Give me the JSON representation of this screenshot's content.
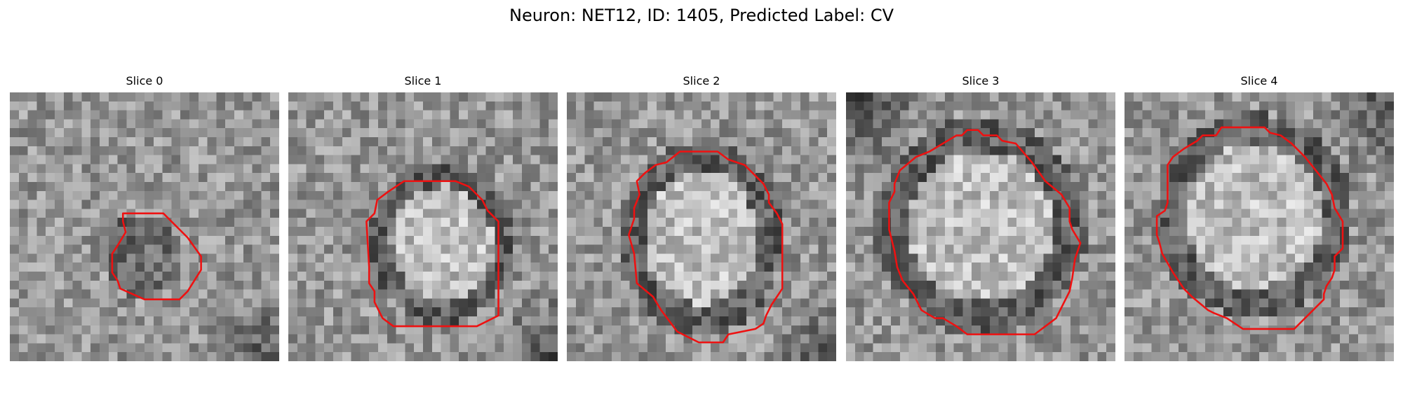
{
  "figure": {
    "title": "Neuron: NET12, ID: 1405, Predicted Label: CV"
  },
  "panels": [
    {
      "title": "Slice 0",
      "seed": 11,
      "cell_center": [
        0.49,
        0.61
      ],
      "cell_radius": [
        0.15,
        0.16
      ],
      "cell_tone": "dark",
      "dark_corner": "bottom-right",
      "contour": [
        [
          0.42,
          0.45
        ],
        [
          0.57,
          0.45
        ],
        [
          0.66,
          0.54
        ],
        [
          0.71,
          0.61
        ],
        [
          0.71,
          0.66
        ],
        [
          0.66,
          0.74
        ],
        [
          0.63,
          0.77
        ],
        [
          0.5,
          0.77
        ],
        [
          0.41,
          0.73
        ],
        [
          0.4,
          0.7
        ],
        [
          0.38,
          0.67
        ],
        [
          0.38,
          0.6
        ],
        [
          0.4,
          0.57
        ],
        [
          0.43,
          0.52
        ],
        [
          0.42,
          0.48
        ]
      ]
    },
    {
      "title": "Slice 1",
      "seed": 23,
      "cell_center": [
        0.57,
        0.56
      ],
      "cell_radius": [
        0.24,
        0.27
      ],
      "cell_tone": "bright",
      "dark_corner": "bottom-right",
      "contour": [
        [
          0.43,
          0.33
        ],
        [
          0.62,
          0.33
        ],
        [
          0.67,
          0.35
        ],
        [
          0.72,
          0.4
        ],
        [
          0.74,
          0.44
        ],
        [
          0.78,
          0.48
        ],
        [
          0.78,
          0.83
        ],
        [
          0.7,
          0.87
        ],
        [
          0.39,
          0.87
        ],
        [
          0.35,
          0.84
        ],
        [
          0.32,
          0.78
        ],
        [
          0.32,
          0.74
        ],
        [
          0.3,
          0.71
        ],
        [
          0.3,
          0.65
        ],
        [
          0.29,
          0.48
        ],
        [
          0.32,
          0.45
        ],
        [
          0.33,
          0.4
        ],
        [
          0.37,
          0.37
        ]
      ]
    },
    {
      "title": "Slice 2",
      "seed": 37,
      "cell_center": [
        0.5,
        0.54
      ],
      "cell_radius": [
        0.27,
        0.32
      ],
      "cell_tone": "bright",
      "dark_corner": "bottom-right",
      "contour": [
        [
          0.42,
          0.22
        ],
        [
          0.56,
          0.22
        ],
        [
          0.6,
          0.25
        ],
        [
          0.66,
          0.27
        ],
        [
          0.73,
          0.34
        ],
        [
          0.75,
          0.38
        ],
        [
          0.75,
          0.41
        ],
        [
          0.78,
          0.45
        ],
        [
          0.8,
          0.49
        ],
        [
          0.8,
          0.73
        ],
        [
          0.76,
          0.79
        ],
        [
          0.74,
          0.83
        ],
        [
          0.73,
          0.86
        ],
        [
          0.7,
          0.88
        ],
        [
          0.6,
          0.9
        ],
        [
          0.58,
          0.93
        ],
        [
          0.49,
          0.93
        ],
        [
          0.41,
          0.89
        ],
        [
          0.35,
          0.81
        ],
        [
          0.32,
          0.76
        ],
        [
          0.26,
          0.71
        ],
        [
          0.25,
          0.6
        ],
        [
          0.23,
          0.53
        ],
        [
          0.25,
          0.47
        ],
        [
          0.25,
          0.43
        ],
        [
          0.27,
          0.38
        ],
        [
          0.26,
          0.33
        ],
        [
          0.29,
          0.3
        ],
        [
          0.33,
          0.27
        ],
        [
          0.37,
          0.26
        ]
      ]
    },
    {
      "title": "Slice 3",
      "seed": 53,
      "cell_center": [
        0.5,
        0.5
      ],
      "cell_radius": [
        0.35,
        0.36
      ],
      "cell_tone": "bright",
      "dark_corner": "top-left",
      "contour": [
        [
          0.36,
          0.19
        ],
        [
          0.41,
          0.16
        ],
        [
          0.43,
          0.16
        ],
        [
          0.45,
          0.14
        ],
        [
          0.49,
          0.14
        ],
        [
          0.51,
          0.16
        ],
        [
          0.56,
          0.16
        ],
        [
          0.58,
          0.18
        ],
        [
          0.63,
          0.19
        ],
        [
          0.69,
          0.26
        ],
        [
          0.74,
          0.33
        ],
        [
          0.8,
          0.38
        ],
        [
          0.83,
          0.43
        ],
        [
          0.83,
          0.48
        ],
        [
          0.84,
          0.51
        ],
        [
          0.87,
          0.56
        ],
        [
          0.85,
          0.62
        ],
        [
          0.84,
          0.69
        ],
        [
          0.83,
          0.74
        ],
        [
          0.8,
          0.8
        ],
        [
          0.78,
          0.84
        ],
        [
          0.7,
          0.9
        ],
        [
          0.67,
          0.9
        ],
        [
          0.45,
          0.9
        ],
        [
          0.41,
          0.87
        ],
        [
          0.36,
          0.84
        ],
        [
          0.33,
          0.84
        ],
        [
          0.28,
          0.81
        ],
        [
          0.25,
          0.75
        ],
        [
          0.21,
          0.7
        ],
        [
          0.19,
          0.65
        ],
        [
          0.18,
          0.59
        ],
        [
          0.16,
          0.51
        ],
        [
          0.16,
          0.41
        ],
        [
          0.18,
          0.37
        ],
        [
          0.18,
          0.34
        ],
        [
          0.2,
          0.29
        ],
        [
          0.26,
          0.24
        ],
        [
          0.31,
          0.22
        ]
      ]
    },
    {
      "title": "Slice 4",
      "seed": 71,
      "cell_center": [
        0.48,
        0.46
      ],
      "cell_radius": [
        0.33,
        0.34
      ],
      "cell_tone": "bright",
      "dark_corner": "top-right",
      "contour": [
        [
          0.27,
          0.18
        ],
        [
          0.29,
          0.16
        ],
        [
          0.34,
          0.16
        ],
        [
          0.36,
          0.13
        ],
        [
          0.52,
          0.13
        ],
        [
          0.54,
          0.15
        ],
        [
          0.58,
          0.16
        ],
        [
          0.62,
          0.19
        ],
        [
          0.67,
          0.24
        ],
        [
          0.71,
          0.29
        ],
        [
          0.75,
          0.34
        ],
        [
          0.77,
          0.38
        ],
        [
          0.78,
          0.43
        ],
        [
          0.81,
          0.48
        ],
        [
          0.81,
          0.53
        ],
        [
          0.81,
          0.58
        ],
        [
          0.78,
          0.61
        ],
        [
          0.78,
          0.66
        ],
        [
          0.77,
          0.69
        ],
        [
          0.75,
          0.72
        ],
        [
          0.74,
          0.75
        ],
        [
          0.74,
          0.77
        ],
        [
          0.7,
          0.81
        ],
        [
          0.66,
          0.85
        ],
        [
          0.63,
          0.88
        ],
        [
          0.44,
          0.88
        ],
        [
          0.38,
          0.84
        ],
        [
          0.33,
          0.82
        ],
        [
          0.31,
          0.81
        ],
        [
          0.25,
          0.76
        ],
        [
          0.22,
          0.73
        ],
        [
          0.18,
          0.67
        ],
        [
          0.14,
          0.6
        ],
        [
          0.13,
          0.56
        ],
        [
          0.12,
          0.53
        ],
        [
          0.12,
          0.46
        ],
        [
          0.15,
          0.44
        ],
        [
          0.16,
          0.41
        ],
        [
          0.16,
          0.27
        ],
        [
          0.18,
          0.24
        ],
        [
          0.22,
          0.21
        ]
      ]
    }
  ],
  "style": {
    "contour_color": "#ee1111"
  }
}
